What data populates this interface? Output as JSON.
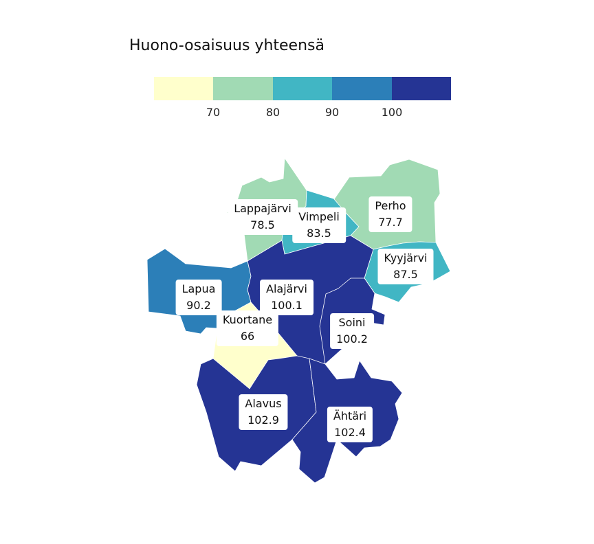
{
  "title": "Huono-osaisuus yhteensä",
  "legend": {
    "colors": [
      "#ffffcc",
      "#a1dab4",
      "#41b6c4",
      "#2c7fb8",
      "#253494"
    ],
    "ticks": [
      "70",
      "80",
      "90",
      "100"
    ]
  },
  "regions": [
    {
      "key": "lappajarvi",
      "name": "Lappajärvi",
      "value": "78.5",
      "color": "#a1dab4"
    },
    {
      "key": "vimpeli",
      "name": "Vimpeli",
      "value": "83.5",
      "color": "#41b6c4"
    },
    {
      "key": "perho",
      "name": "Perho",
      "value": "77.7",
      "color": "#a1dab4"
    },
    {
      "key": "kyyjarvi",
      "name": "Kyyjärvi",
      "value": "87.5",
      "color": "#41b6c4"
    },
    {
      "key": "lapua",
      "name": "Lapua",
      "value": "90.2",
      "color": "#2c7fb8"
    },
    {
      "key": "alajarvi",
      "name": "Alajärvi",
      "value": "100.1",
      "color": "#253494"
    },
    {
      "key": "kuortane",
      "name": "Kuortane",
      "value": "66",
      "color": "#ffffcc"
    },
    {
      "key": "soini",
      "name": "Soini",
      "value": "100.2",
      "color": "#253494"
    },
    {
      "key": "alavus",
      "name": "Alavus",
      "value": "102.9",
      "color": "#253494"
    },
    {
      "key": "ahtari",
      "name": "Ähtäri",
      "value": "102.4",
      "color": "#253494"
    }
  ]
}
